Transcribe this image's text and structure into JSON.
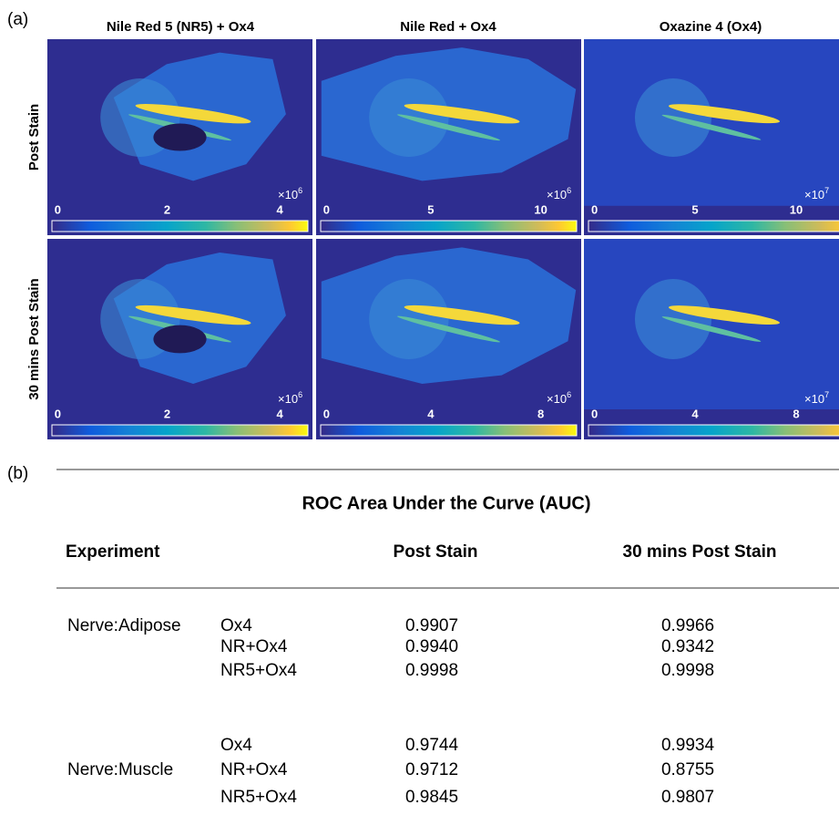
{
  "panel_a": {
    "label": "(a)",
    "columns": [
      "Nile Red 5 (NR5) + Ox4",
      "Nile Red + Ox4",
      "Oxazine 4 (Ox4)"
    ],
    "rows": [
      "Post Stain",
      "30 mins Post Stain"
    ],
    "colorbars": [
      [
        {
          "ticks": [
            "0",
            "2",
            "4"
          ],
          "multiplier": "×10",
          "exponent": "6"
        },
        {
          "ticks": [
            "0",
            "5",
            "10"
          ],
          "multiplier": "×10",
          "exponent": "6"
        },
        {
          "ticks": [
            "0",
            "5",
            "10"
          ],
          "multiplier": "×10",
          "exponent": "7"
        }
      ],
      [
        {
          "ticks": [
            "0",
            "2",
            "4"
          ],
          "multiplier": "×10",
          "exponent": "6"
        },
        {
          "ticks": [
            "0",
            "4",
            "8"
          ],
          "multiplier": "×10",
          "exponent": "6"
        },
        {
          "ticks": [
            "0",
            "4",
            "8"
          ],
          "multiplier": "×10",
          "exponent": "7"
        }
      ]
    ]
  },
  "panel_b": {
    "label": "(b)",
    "title": "ROC Area Under the Curve (AUC)",
    "header": [
      "Experiment",
      "Post Stain",
      "30 mins Post Stain"
    ],
    "groups": [
      {
        "name": "Nerve:Adipose",
        "rows": [
          [
            "Ox4",
            "0.9907",
            "0.9966"
          ],
          [
            "NR+Ox4",
            "0.9940",
            "0.9342"
          ],
          [
            "NR5+Ox4",
            "0.9998",
            "0.9998"
          ]
        ]
      },
      {
        "name": "Nerve:Muscle",
        "rows": [
          [
            "Ox4",
            "0.9744",
            "0.9934"
          ],
          [
            "NR+Ox4",
            "0.9712",
            "0.8755"
          ],
          [
            "NR5+Ox4",
            "0.9845",
            "0.9807"
          ]
        ]
      }
    ]
  }
}
